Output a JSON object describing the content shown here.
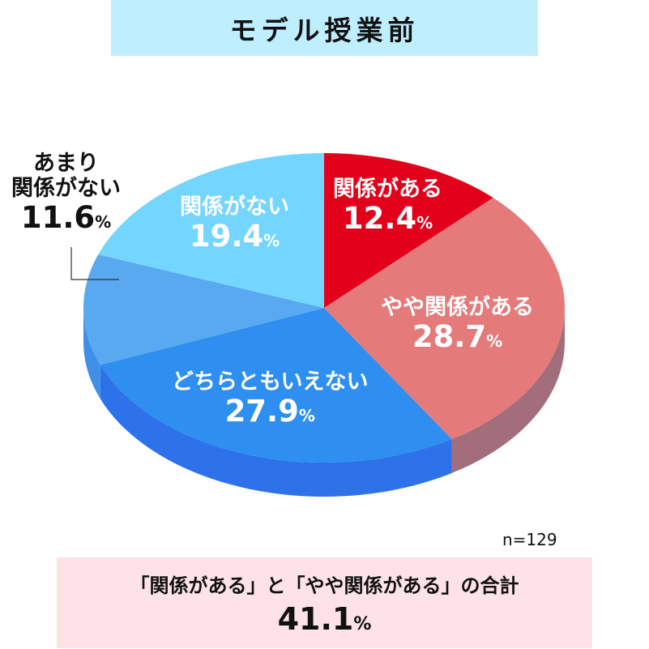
{
  "title": "モデル授業前",
  "n_label": "n=129",
  "summary": {
    "text": "「関係がある」と「やや関係がある」の合計",
    "value": "41.1",
    "unit": "%"
  },
  "colors": {
    "title_bg": "#bfeeff",
    "summary_bg": "#fde3e8"
  },
  "chart_data": {
    "type": "pie",
    "style": "3d",
    "start": "12 o'clock",
    "direction": "clockwise",
    "slices": [
      {
        "label": "関係がある",
        "value": 12.4,
        "display": "12.4",
        "color": "#e2001a",
        "side_color": "#a80012"
      },
      {
        "label": "やや関係がある",
        "value": 28.7,
        "display": "28.7",
        "color": "#e57a7a",
        "side_color": "#a36e7c"
      },
      {
        "label": "どちらともいえない",
        "value": 27.9,
        "display": "27.9",
        "color": "#2e8ff0",
        "side_color": "#2d72e8"
      },
      {
        "label": "あまり関係がない",
        "value": 11.6,
        "display": "11.6",
        "color": "#58a9f0",
        "side_color": "#3f8fe6"
      },
      {
        "label": "関係がない",
        "value": 19.4,
        "display": "19.4",
        "color": "#74d6ff",
        "side_color": "#55b8e8"
      }
    ],
    "unit": "%",
    "outside_label": {
      "line1": "あまり",
      "line2": "関係がない"
    }
  }
}
